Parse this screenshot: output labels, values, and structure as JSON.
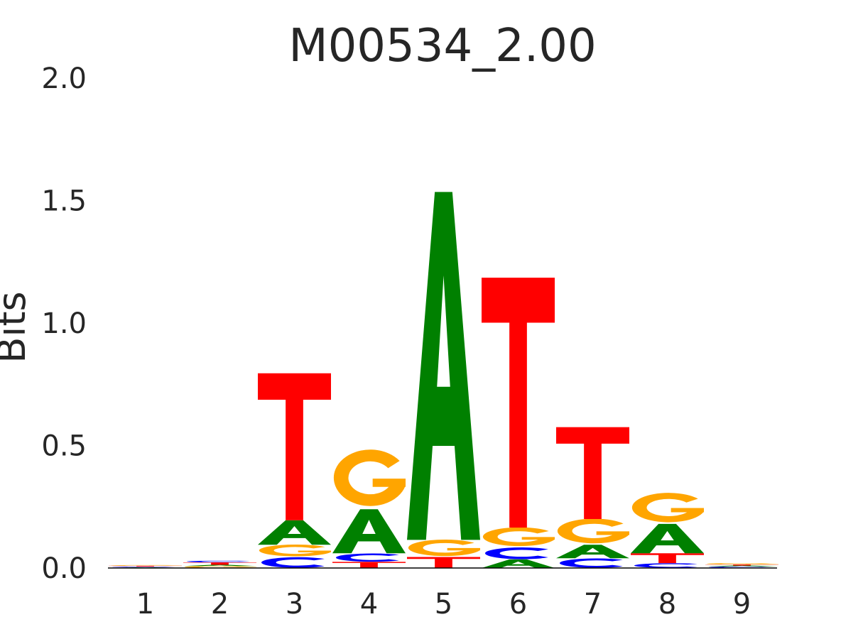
{
  "chart_data": {
    "type": "sequence-logo",
    "title": "M00534_2.00",
    "ylabel": "Bits",
    "xlabel": "",
    "ylim": [
      0,
      2.0
    ],
    "yticks": [
      "0.0",
      "0.5",
      "1.0",
      "1.5",
      "2.0"
    ],
    "yticks_values": [
      0,
      0.5,
      1.0,
      1.5,
      2.0
    ],
    "positions": [
      "1",
      "2",
      "3",
      "4",
      "5",
      "6",
      "7",
      "8",
      "9"
    ],
    "colors": {
      "A": "#008000",
      "C": "#0000ff",
      "G": "#ffa500",
      "T": "#ff0000"
    },
    "columns": [
      [
        {
          "base": "A",
          "value": 0.003
        },
        {
          "base": "C",
          "value": 0.003
        },
        {
          "base": "T",
          "value": 0.003
        },
        {
          "base": "G",
          "value": 0.003
        }
      ],
      [
        {
          "base": "G",
          "value": 0.008
        },
        {
          "base": "A",
          "value": 0.005
        },
        {
          "base": "T",
          "value": 0.01
        },
        {
          "base": "C",
          "value": 0.007
        }
      ],
      [
        {
          "base": "C",
          "value": 0.045
        },
        {
          "base": "G",
          "value": 0.05
        },
        {
          "base": "A",
          "value": 0.1
        },
        {
          "base": "T",
          "value": 0.6
        }
      ],
      [
        {
          "base": "T",
          "value": 0.025
        },
        {
          "base": "C",
          "value": 0.035
        },
        {
          "base": "A",
          "value": 0.18
        },
        {
          "base": "G",
          "value": 0.24
        }
      ],
      [
        {
          "base": "T",
          "value": 0.045
        },
        {
          "base": "G",
          "value": 0.07
        },
        {
          "base": "A",
          "value": 1.42
        }
      ],
      [
        {
          "base": "A",
          "value": 0.035
        },
        {
          "base": "C",
          "value": 0.05
        },
        {
          "base": "G",
          "value": 0.08
        },
        {
          "base": "T",
          "value": 1.02
        }
      ],
      [
        {
          "base": "C",
          "value": 0.04
        },
        {
          "base": "A",
          "value": 0.055
        },
        {
          "base": "G",
          "value": 0.105
        },
        {
          "base": "T",
          "value": 0.375
        }
      ],
      [
        {
          "base": "C",
          "value": 0.02
        },
        {
          "base": "T",
          "value": 0.04
        },
        {
          "base": "A",
          "value": 0.12
        },
        {
          "base": "G",
          "value": 0.125
        }
      ],
      [
        {
          "base": "C",
          "value": 0.006
        },
        {
          "base": "A",
          "value": 0.004
        },
        {
          "base": "T",
          "value": 0.004
        },
        {
          "base": "G",
          "value": 0.006
        }
      ]
    ]
  }
}
